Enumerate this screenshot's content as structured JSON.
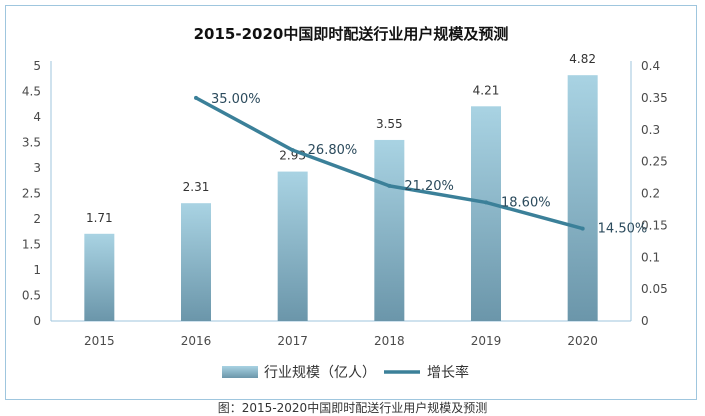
{
  "chart_data": {
    "type": "bar",
    "title": "2015-2020中国即时配送行业用户规模及预测",
    "categories": [
      "2015",
      "2016",
      "2017",
      "2018",
      "2019",
      "2020"
    ],
    "series": [
      {
        "name": "行业规模（亿人）",
        "type": "bar",
        "axis": "left",
        "values": [
          1.71,
          2.31,
          2.93,
          3.55,
          4.21,
          4.82
        ],
        "labels": [
          "1.71",
          "2.31",
          "2.93",
          "3.55",
          "4.21",
          "4.82"
        ]
      },
      {
        "name": "增长率",
        "type": "line",
        "axis": "right",
        "values": [
          null,
          0.35,
          0.268,
          0.212,
          0.186,
          0.145
        ],
        "labels": [
          "",
          "35.00%",
          "26.80%",
          "21.20%",
          "18.60%",
          "14.50%"
        ]
      }
    ],
    "y_left": {
      "ylim": [
        0,
        5
      ],
      "ticks": [
        "0",
        "0.5",
        "1",
        "1.5",
        "2",
        "2.5",
        "3",
        "3.5",
        "4",
        "4.5",
        "5"
      ]
    },
    "y_right": {
      "ylim": [
        0,
        0.4
      ],
      "ticks": [
        "0",
        "0.05",
        "0.1",
        "0.15",
        "0.2",
        "0.25",
        "0.3",
        "0.35",
        "0.4"
      ]
    },
    "grid": false,
    "legend": "bottom-center",
    "colors": {
      "bar_top": "#a9d3e3",
      "bar_bottom": "#6b96aa",
      "line": "#3b8099",
      "axis": "#9fc6de"
    }
  },
  "caption": "图：2015-2020中国即时配送行业用户规模及预测"
}
